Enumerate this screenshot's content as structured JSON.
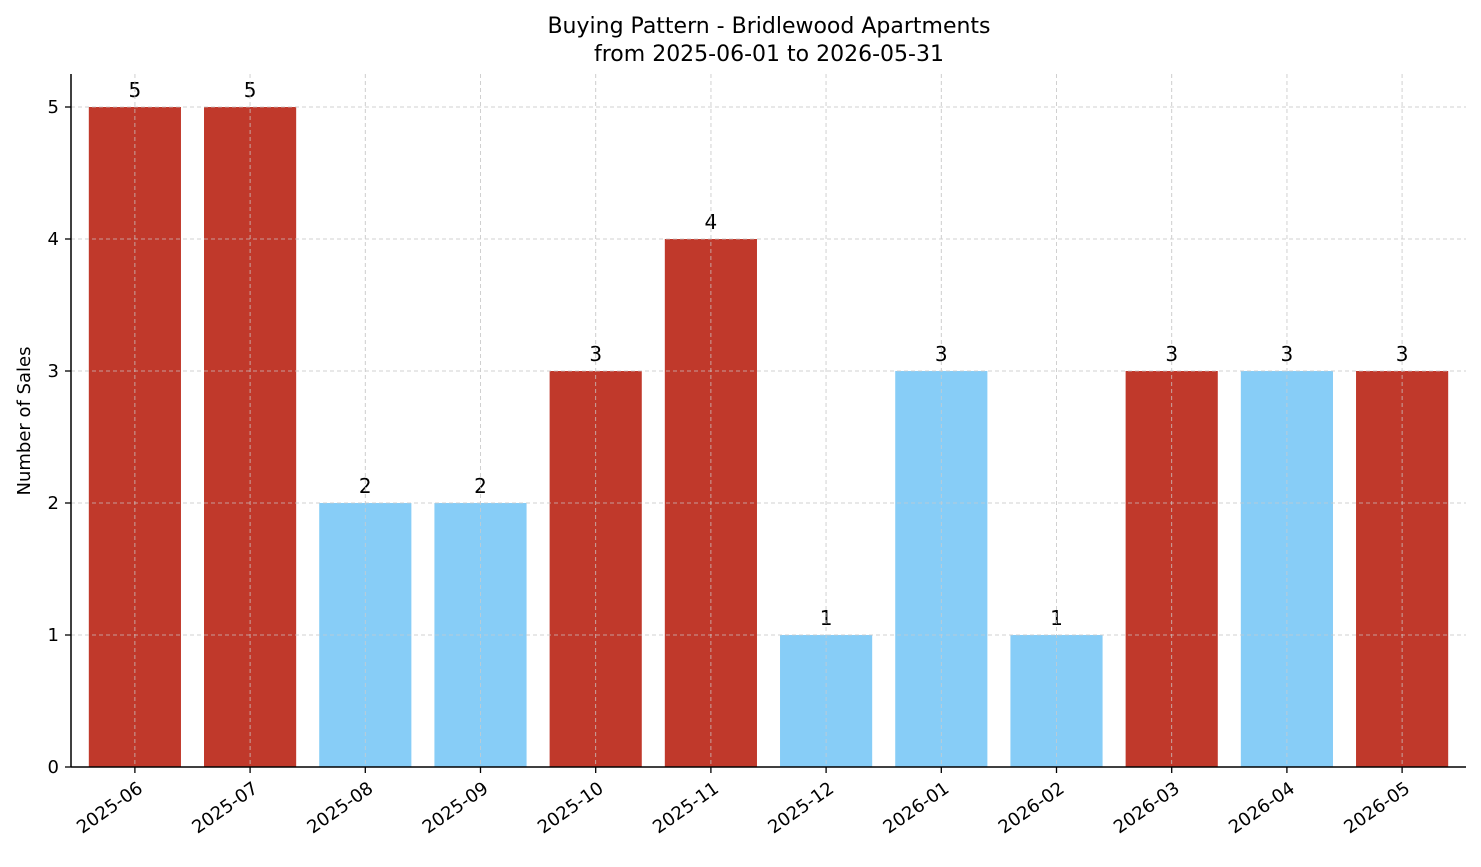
{
  "chart_data": {
    "type": "bar",
    "title": "Buying Pattern - Bridlewood Apartments",
    "subtitle": "from 2025-06-01 to 2026-05-31",
    "xlabel": "",
    "ylabel": "Number of Sales",
    "categories": [
      "2025-06",
      "2025-07",
      "2025-08",
      "2025-09",
      "2025-10",
      "2025-11",
      "2025-12",
      "2026-01",
      "2026-02",
      "2026-03",
      "2026-04",
      "2026-05"
    ],
    "values": [
      5,
      5,
      2,
      2,
      3,
      4,
      1,
      3,
      1,
      3,
      3,
      3
    ],
    "bar_colors": [
      "#c0392b",
      "#c0392b",
      "#87cdf7",
      "#87cdf7",
      "#c0392b",
      "#c0392b",
      "#87cdf7",
      "#87cdf7",
      "#87cdf7",
      "#c0392b",
      "#87cdf7",
      "#c0392b"
    ],
    "ylim": [
      0,
      5.25
    ],
    "yticks": [
      0,
      1,
      2,
      3,
      4,
      5
    ],
    "grid": true,
    "legend": "none"
  }
}
